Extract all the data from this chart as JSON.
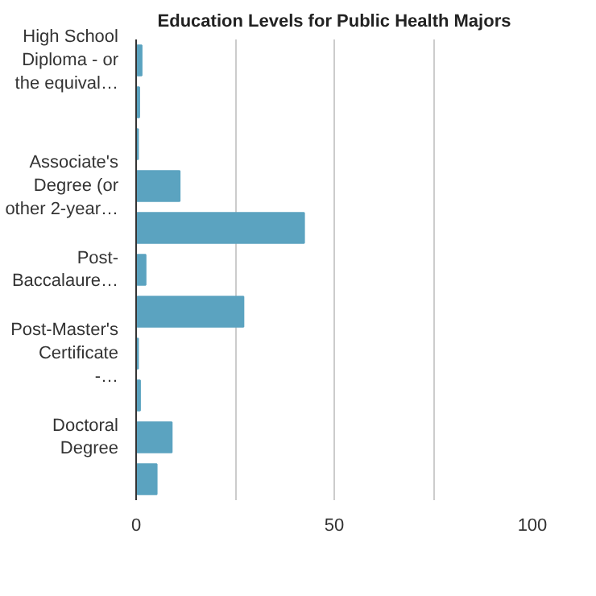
{
  "chart_data": {
    "type": "bar",
    "orientation": "horizontal",
    "title": "Education Levels for Public Health Majors",
    "categories": [
      "High School Diploma - or the equival…",
      null,
      null,
      "Associate's Degree (or other 2-year…",
      null,
      "Post-Baccalaure…",
      null,
      "Post-Master's Certificate -…",
      null,
      "Doctoral Degree",
      null
    ],
    "values": [
      1.4,
      0.8,
      0.5,
      11,
      42.4,
      2.4,
      27.1,
      0.5,
      1,
      9,
      5.2
    ],
    "color": "#5ba3c0",
    "xlim": [
      0,
      100
    ],
    "xticks": [
      0,
      {
        "value": 25,
        "label": null
      },
      50,
      {
        "value": 75,
        "label": null
      },
      100
    ],
    "grid": "x"
  }
}
